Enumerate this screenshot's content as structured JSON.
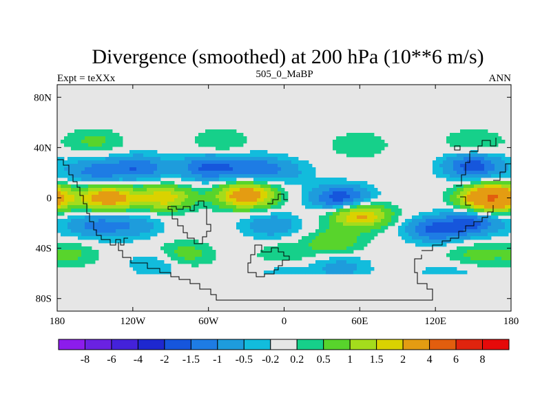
{
  "chart_data": {
    "type": "heatmap",
    "title": "Divergence (smoothed) at 200 hPa (10**6 m/s)",
    "subtitle_left": "Expt = teXXx",
    "subtitle_center": "505_0_MaBP",
    "subtitle_right": "ANN",
    "x_ticks": [
      {
        "value": -180,
        "label": "180"
      },
      {
        "value": -120,
        "label": "120W"
      },
      {
        "value": -60,
        "label": "60W"
      },
      {
        "value": 0,
        "label": "0"
      },
      {
        "value": 60,
        "label": "60E"
      },
      {
        "value": 120,
        "label": "120E"
      },
      {
        "value": 180,
        "label": "180"
      }
    ],
    "y_ticks": [
      {
        "value": 80,
        "label": "80N"
      },
      {
        "value": 40,
        "label": "40N"
      },
      {
        "value": 0,
        "label": "0"
      },
      {
        "value": -40,
        "label": "40S"
      },
      {
        "value": -80,
        "label": "80S"
      }
    ],
    "xlim": [
      -180,
      180
    ],
    "ylim": [
      -90,
      90
    ],
    "levels": [
      "-8",
      "-6",
      "-4",
      "-2",
      "-1.5",
      "-1",
      "-0.5",
      "-0.2",
      "0.2",
      "0.5",
      "1",
      "1.5",
      "2",
      "4",
      "6",
      "8"
    ],
    "colors": [
      "#8C1CEC",
      "#6A22E2",
      "#4422DA",
      "#1E28D0",
      "#1656DC",
      "#1E7CE4",
      "#1E9CDC",
      "#12BCDC",
      "#E6E6E6",
      "#16D08A",
      "#58D42C",
      "#A4DC1C",
      "#DAD200",
      "#E49C12",
      "#E25E0E",
      "#E0240E",
      "#E60A0A"
    ],
    "features": [
      {
        "lon": -150,
        "lat": 21,
        "value": -1.2
      },
      {
        "lon": -115,
        "lat": 24,
        "value": -1.4
      },
      {
        "lon": -60,
        "lat": 24,
        "value": -1.6
      },
      {
        "lon": -25,
        "lat": 24,
        "value": -1.2
      },
      {
        "lon": 150,
        "lat": 25,
        "value": -1.8
      },
      {
        "lon": 0,
        "lat": 21,
        "value": -0.6
      },
      {
        "lon": -150,
        "lat": -22,
        "value": -1.1
      },
      {
        "lon": -120,
        "lat": -22,
        "value": -0.8
      },
      {
        "lon": 120,
        "lat": -25,
        "value": -1.6
      },
      {
        "lon": 150,
        "lat": -20,
        "value": -1.5
      },
      {
        "lon": -10,
        "lat": -22,
        "value": -0.9
      },
      {
        "lon": 45,
        "lat": 0,
        "value": -1.9
      },
      {
        "lon": -100,
        "lat": -52,
        "value": -0.6
      },
      {
        "lon": 45,
        "lat": -55,
        "value": -0.7
      },
      {
        "lon": 0,
        "lat": -60,
        "value": -0.4
      },
      {
        "lon": 130,
        "lat": -62,
        "value": -0.5
      },
      {
        "lon": -140,
        "lat": 0,
        "value": 2.6
      },
      {
        "lon": -95,
        "lat": 0,
        "value": 1.8
      },
      {
        "lon": -30,
        "lat": 2,
        "value": 2.7
      },
      {
        "lon": 165,
        "lat": 0,
        "value": 4.2
      },
      {
        "lon": 60,
        "lat": -14,
        "value": 2.2
      },
      {
        "lon": -80,
        "lat": -45,
        "value": 0.8
      },
      {
        "lon": 40,
        "lat": -35,
        "value": 0.9
      },
      {
        "lon": -150,
        "lat": 45,
        "value": 0.6
      },
      {
        "lon": -50,
        "lat": 45,
        "value": 0.5
      },
      {
        "lon": 60,
        "lat": 42,
        "value": 0.5
      },
      {
        "lon": 150,
        "lat": 45,
        "value": 0.5
      },
      {
        "lon": -170,
        "lat": -45,
        "value": 0.6
      },
      {
        "lon": 0,
        "lat": -45,
        "value": 0.5
      },
      {
        "lon": 150,
        "lat": -45,
        "value": 0.6
      }
    ]
  }
}
